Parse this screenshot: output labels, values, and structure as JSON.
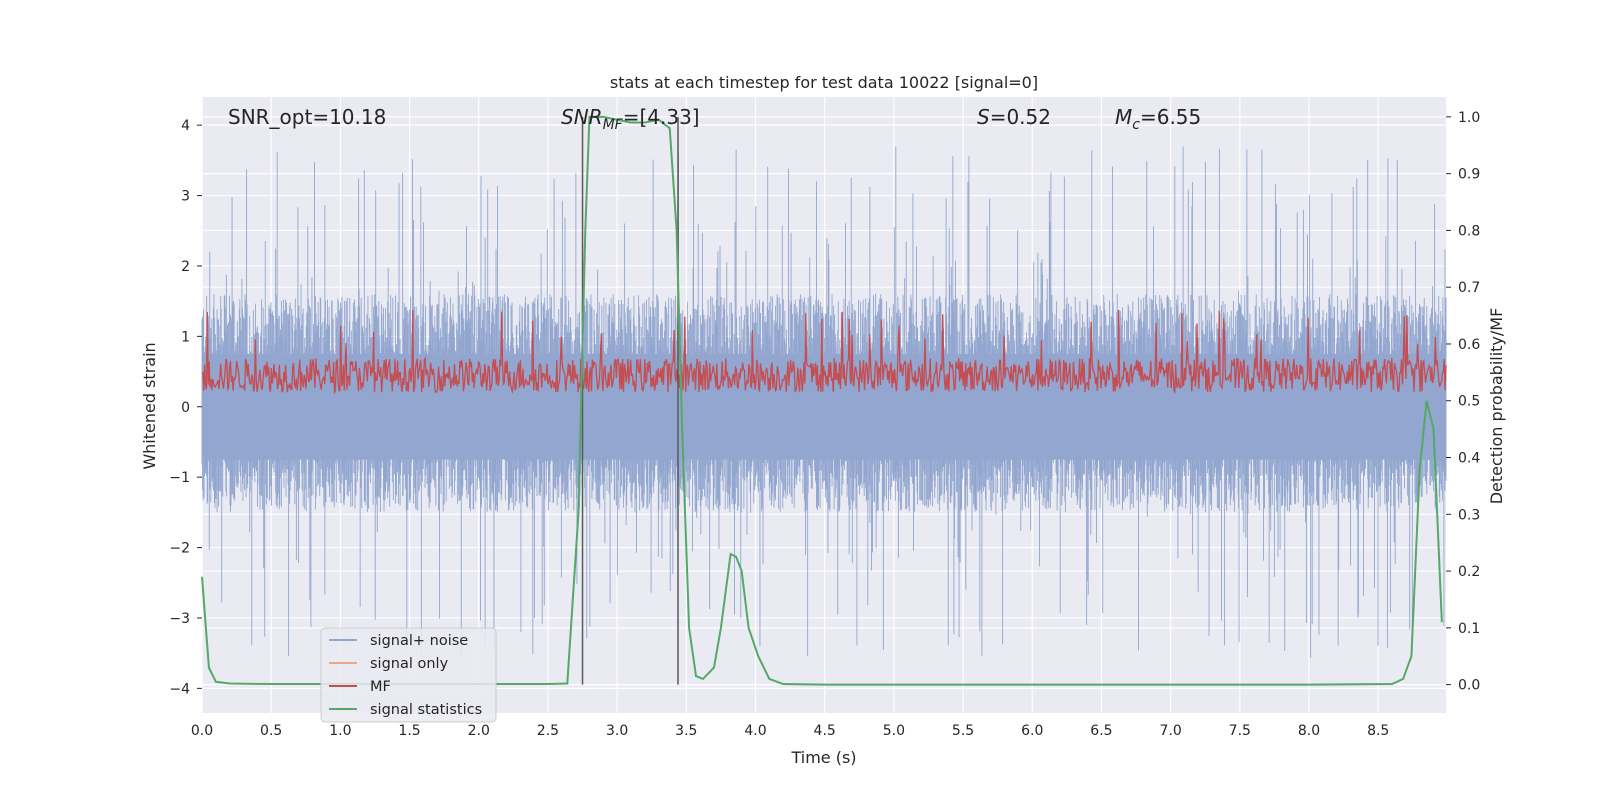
{
  "chart_data": {
    "type": "line",
    "title": "stats at each timestep for test data 10022 [signal=0]",
    "xlabel": "Time (s)",
    "ylabel_left": "Whitened strain",
    "ylabel_right": "Detection probability/MF",
    "xlim": [
      0.0,
      8.99
    ],
    "ylim_left": [
      -4.35,
      4.4
    ],
    "ylim_right": [
      -0.05,
      1.035
    ],
    "x_ticks": [
      "0.0",
      "0.5",
      "1.0",
      "1.5",
      "2.0",
      "2.5",
      "3.0",
      "3.5",
      "4.0",
      "4.5",
      "5.0",
      "5.5",
      "6.0",
      "6.5",
      "7.0",
      "7.5",
      "8.0",
      "8.5"
    ],
    "y_ticks_left": [
      "4",
      "3",
      "2",
      "1",
      "0",
      "−1",
      "−2",
      "−3",
      "−4"
    ],
    "y_ticks_right": [
      "1.0",
      "0.9",
      "0.8",
      "0.7",
      "0.6",
      "0.5",
      "0.4",
      "0.3",
      "0.2",
      "0.1",
      "0.0"
    ],
    "grid": true,
    "legend_position": "lower-left",
    "annotations": {
      "snr_opt": "SNR_opt=10.18",
      "snr_mf_base": "SNR",
      "snr_mf_sub": "MF",
      "snr_mf_val": "=[4.33]",
      "s_sym": "S",
      "s_val": "=0.52",
      "mc_sym": "M",
      "mc_sub": "c",
      "mc_val": "=6.55"
    },
    "vertical_lines_x": [
      2.75,
      3.44
    ],
    "series": [
      {
        "name": "signal+ noise",
        "color": "#92a6cf",
        "axis": "left",
        "envelope_typical": [
          -1.5,
          1.6
        ],
        "envelope_peaks": [
          -3.6,
          3.7
        ]
      },
      {
        "name": "signal only",
        "color": "#e8a88a",
        "axis": "left"
      },
      {
        "name": "MF",
        "color": "#c44e52",
        "axis": "right",
        "range_typical": [
          0.5,
          0.6
        ]
      },
      {
        "name": "signal statistics",
        "color": "#55a868",
        "axis": "right",
        "x": [
          0.0,
          0.05,
          0.1,
          0.2,
          0.5,
          1.0,
          2.0,
          2.5,
          2.64,
          2.72,
          2.77,
          2.8,
          2.9,
          3.0,
          3.1,
          3.2,
          3.3,
          3.38,
          3.43,
          3.47,
          3.52,
          3.57,
          3.62,
          3.7,
          3.75,
          3.82,
          3.86,
          3.9,
          3.95,
          4.02,
          4.1,
          4.2,
          4.5,
          5.0,
          6.0,
          7.0,
          8.0,
          8.6,
          8.68,
          8.74,
          8.8,
          8.85,
          8.9,
          8.96
        ],
        "y": [
          0.19,
          0.03,
          0.005,
          0.002,
          0.001,
          0.001,
          0.001,
          0.001,
          0.002,
          0.3,
          0.8,
          1.0,
          1.0,
          0.995,
          0.99,
          0.99,
          0.995,
          0.98,
          0.8,
          0.45,
          0.1,
          0.015,
          0.01,
          0.03,
          0.1,
          0.23,
          0.225,
          0.2,
          0.1,
          0.05,
          0.01,
          0.001,
          0.0,
          0.0,
          0.0,
          0.0,
          0.0,
          0.001,
          0.01,
          0.05,
          0.38,
          0.5,
          0.45,
          0.11
        ]
      }
    ]
  },
  "colors": {
    "plot_bg": "#eaeaf2",
    "grid": "#ffffff",
    "text": "#262626",
    "vline": "#595959"
  }
}
